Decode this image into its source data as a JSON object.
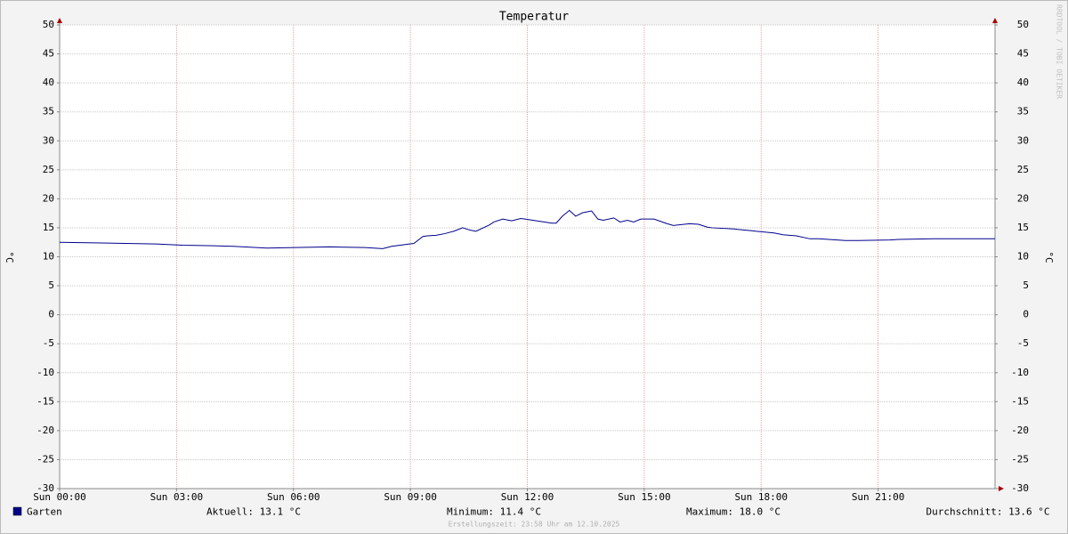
{
  "chart_data": {
    "type": "line",
    "title": "Temperatur",
    "y_label": "°C",
    "y2_label": "°C",
    "watermark": "RRDTOOL / TOBI OETIKER",
    "xlim": [
      0,
      24
    ],
    "xticks": [
      {
        "value": 0,
        "label": "Sun 00:00"
      },
      {
        "value": 3,
        "label": "Sun 03:00"
      },
      {
        "value": 6,
        "label": "Sun 06:00"
      },
      {
        "value": 9,
        "label": "Sun 09:00"
      },
      {
        "value": 12,
        "label": "Sun 12:00"
      },
      {
        "value": 15,
        "label": "Sun 15:00"
      },
      {
        "value": 18,
        "label": "Sun 18:00"
      },
      {
        "value": 21,
        "label": "Sun 21:00"
      }
    ],
    "ylim": [
      -30,
      50
    ],
    "yticks": [
      -30,
      -25,
      -20,
      -15,
      -10,
      -5,
      0,
      5,
      10,
      15,
      20,
      25,
      30,
      35,
      40,
      45,
      50
    ],
    "grid": true,
    "x_grid_color": "#e8a0a0",
    "y_grid_color": "#c8c8c8",
    "x": [
      0,
      0.91,
      2.47,
      3.15,
      3.95,
      4.45,
      5.32,
      6.92,
      7.83,
      8.29,
      8.52,
      9.09,
      9.32,
      9.43,
      9.66,
      9.89,
      10.11,
      10.34,
      10.53,
      10.68,
      11.03,
      11.14,
      11.37,
      11.6,
      11.83,
      11.94,
      12.63,
      12.74,
      12.9,
      13.08,
      13.24,
      13.42,
      13.65,
      13.81,
      13.95,
      14.22,
      14.38,
      14.57,
      14.73,
      14.91,
      15.25,
      15.59,
      15.75,
      16.16,
      16.39,
      16.62,
      16.74,
      17.31,
      17.42,
      17.76,
      17.88,
      18.33,
      18.56,
      18.9,
      19.25,
      19.47,
      20.16,
      20.5,
      21.3,
      21.53,
      22.44,
      22.67,
      24
    ],
    "series": [
      {
        "name": "Garten",
        "color": "#00008b",
        "values": [
          12.5,
          12.4,
          12.2,
          12.0,
          11.9,
          11.8,
          11.5,
          11.7,
          11.6,
          11.4,
          11.8,
          12.3,
          13.5,
          13.6,
          13.7,
          14.0,
          14.4,
          15.0,
          14.6,
          14.4,
          15.5,
          16.0,
          16.5,
          16.2,
          16.6,
          16.5,
          15.8,
          15.8,
          17.0,
          18.0,
          17.0,
          17.6,
          17.9,
          16.5,
          16.3,
          16.7,
          16.0,
          16.3,
          16.0,
          16.5,
          16.5,
          15.7,
          15.4,
          15.7,
          15.6,
          15.1,
          15.0,
          14.8,
          14.7,
          14.5,
          14.4,
          14.1,
          13.8,
          13.6,
          13.1,
          13.1,
          12.8,
          12.8,
          12.9,
          13.0,
          13.1,
          13.1,
          13.1
        ]
      }
    ],
    "legend_stats": [
      "Aktuell: 13.1 °C",
      "Minimum: 11.4 °C",
      "Maximum: 18.0 °C",
      "Durchschnitt: 13.6 °C"
    ],
    "footer": "Erstellungszeit: 23:58 Uhr am 12.10.2025"
  }
}
